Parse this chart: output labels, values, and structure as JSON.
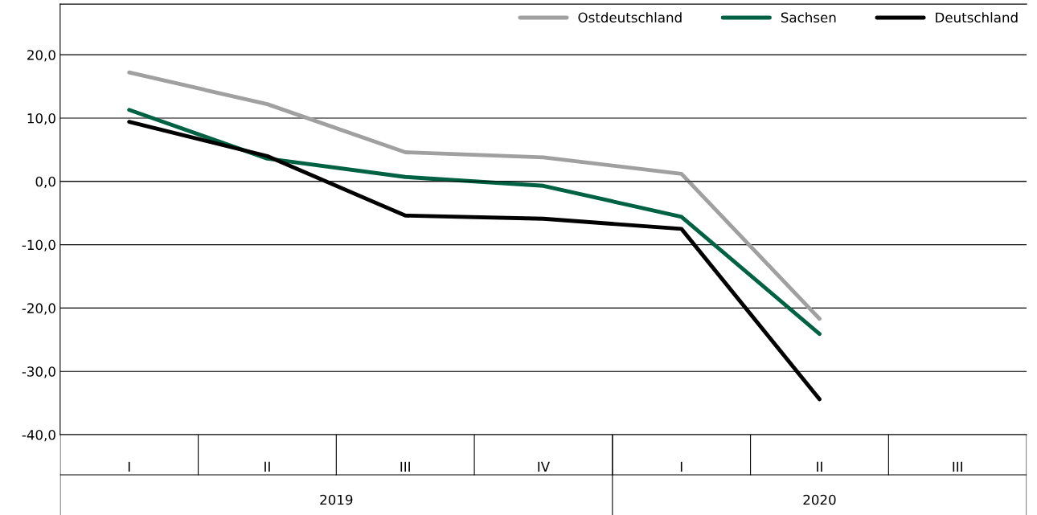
{
  "chart_data": {
    "type": "line",
    "categories": [
      "I",
      "II",
      "III",
      "IV",
      "I",
      "II",
      "III"
    ],
    "series": [
      {
        "name": "Ostdeutschland",
        "color": "#a0a0a0",
        "values": [
          17.2,
          12.2,
          4.6,
          3.8,
          1.2,
          -21.7,
          null
        ]
      },
      {
        "name": "Sachsen",
        "color": "#006242",
        "values": [
          11.3,
          3.6,
          0.7,
          -0.7,
          -5.6,
          -24.1,
          null
        ]
      },
      {
        "name": "Deutschland",
        "color": "#000000",
        "values": [
          9.4,
          4.0,
          -5.4,
          -5.9,
          -7.5,
          -34.4,
          null
        ]
      }
    ],
    "ylim": [
      -40,
      28
    ],
    "yticks": [
      {
        "value": -40,
        "label": "-40,0"
      },
      {
        "value": -30,
        "label": "-30,0"
      },
      {
        "value": -20,
        "label": "-20,0"
      },
      {
        "value": -10,
        "label": "-10,0"
      },
      {
        "value": 0,
        "label": "0,0"
      },
      {
        "value": 10,
        "label": "10,0"
      },
      {
        "value": 20,
        "label": "20,0"
      }
    ],
    "grid": "y",
    "legend": "top right",
    "annotations": [
      "2019",
      "2020"
    ]
  }
}
